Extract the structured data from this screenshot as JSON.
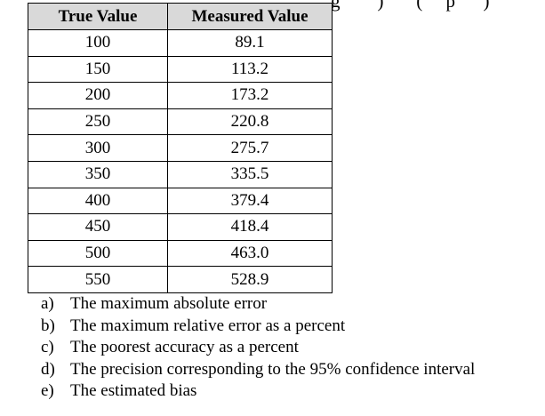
{
  "top_fragment": "g        )       (     p      )",
  "table": {
    "headers": {
      "true_value": "True Value",
      "measured_value": "Measured Value"
    },
    "rows": [
      {
        "true": "100",
        "measured": "89.1"
      },
      {
        "true": "150",
        "measured": "113.2"
      },
      {
        "true": "200",
        "measured": "173.2"
      },
      {
        "true": "250",
        "measured": "220.8"
      },
      {
        "true": "300",
        "measured": "275.7"
      },
      {
        "true": "350",
        "measured": "335.5"
      },
      {
        "true": "400",
        "measured": "379.4"
      },
      {
        "true": "450",
        "measured": "418.4"
      },
      {
        "true": "500",
        "measured": "463.0"
      },
      {
        "true": "550",
        "measured": "528.9"
      }
    ]
  },
  "questions": [
    {
      "marker": "a)",
      "text": "The maximum absolute error"
    },
    {
      "marker": "b)",
      "text": "The maximum relative error as a percent"
    },
    {
      "marker": "c)",
      "text": "The poorest accuracy as a percent"
    },
    {
      "marker": "d)",
      "text": "The precision corresponding to the 95% confidence interval"
    },
    {
      "marker": "e)",
      "text": "The estimated bias"
    }
  ]
}
